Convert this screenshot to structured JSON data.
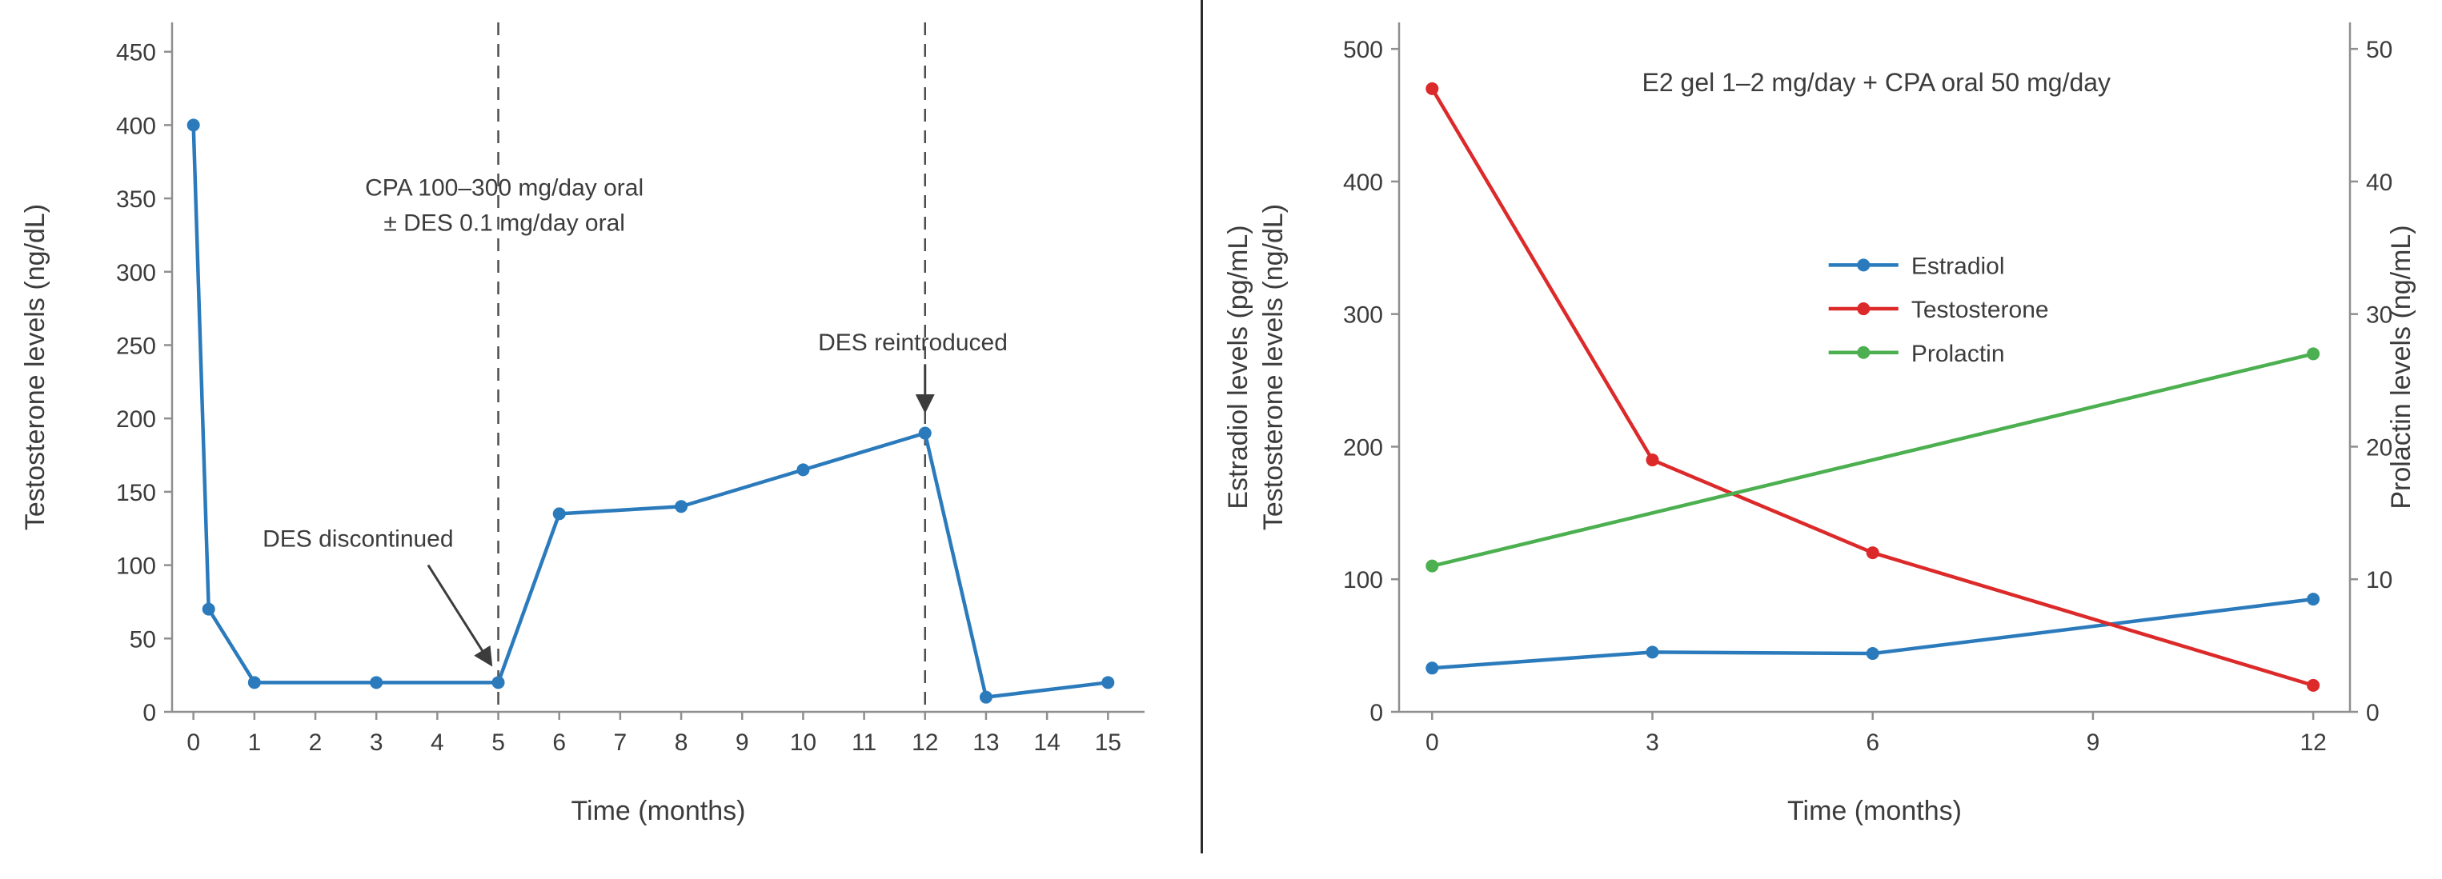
{
  "figure": {
    "background": "#ffffff",
    "divider_color": "#2b2b2b",
    "text_color": "#3c3c3c"
  },
  "chart_data": [
    {
      "type": "line",
      "title": "",
      "xlabel": "Time (months)",
      "ylabel": "Testosterone levels (ng/dL)",
      "xlim": [
        -0.35,
        15.6
      ],
      "ylim": [
        0,
        470
      ],
      "xticks": [
        0,
        1,
        2,
        3,
        4,
        5,
        6,
        7,
        8,
        9,
        10,
        11,
        12,
        13,
        14,
        15
      ],
      "yticks": [
        0,
        50,
        100,
        150,
        200,
        250,
        300,
        350,
        400,
        450
      ],
      "grid": false,
      "legend_position": "none",
      "series": [
        {
          "name": "Testosterone",
          "color": "#2b7bbc",
          "y_axis": "left",
          "marker": "circle",
          "x": [
            0,
            0.25,
            1,
            3,
            5,
            6,
            8,
            10,
            12,
            13,
            15
          ],
          "y": [
            400,
            70,
            20,
            20,
            20,
            135,
            140,
            165,
            190,
            10,
            20
          ]
        }
      ],
      "vlines": [
        {
          "x": 5,
          "style": "dashed"
        },
        {
          "x": 12,
          "style": "dashed"
        }
      ],
      "text_annotations": [
        {
          "role": "treatment-label",
          "lines": [
            "CPA 100–300 mg/day oral",
            "± DES 0.1 mg/day oral"
          ],
          "x": 5.1,
          "y": 352
        }
      ],
      "arrow_annotations": [
        {
          "text": "DES discontinued",
          "text_x": 2.7,
          "text_y": 118,
          "arrow": {
            "x1": 3.85,
            "y1": 100,
            "x2": 4.87,
            "y2": 33
          }
        },
        {
          "text": "DES reintroduced",
          "text_x": 11.8,
          "text_y": 252,
          "arrow": {
            "x1": 12,
            "y1": 237,
            "x2": 12,
            "y2": 206
          }
        }
      ]
    },
    {
      "type": "line",
      "title": "E2 gel 1–2 mg/day + CPA oral 50 mg/day",
      "xlabel": "Time (months)",
      "ylabel": [
        "Estradiol levels (pg/mL)",
        "Testosterone levels (ng/dL)"
      ],
      "y2label": "Prolactin levels (ng/mL)",
      "xlim": [
        -0.45,
        12.5
      ],
      "ylim": [
        0,
        520
      ],
      "y2lim": [
        0,
        52
      ],
      "xticks": [
        0,
        3,
        6,
        9,
        12
      ],
      "yticks": [
        0,
        100,
        200,
        300,
        400,
        500
      ],
      "y2ticks": [
        0,
        10,
        20,
        30,
        40,
        50
      ],
      "grid": false,
      "series": [
        {
          "name": "Estradiol",
          "color": "#2b7bbc",
          "y_axis": "left",
          "marker": "circle",
          "x": [
            0,
            3,
            6,
            12
          ],
          "y": [
            33,
            45,
            44,
            85
          ]
        },
        {
          "name": "Testosterone",
          "color": "#dc2a2a",
          "y_axis": "left",
          "marker": "circle",
          "x": [
            0,
            3,
            6,
            12
          ],
          "y": [
            470,
            190,
            120,
            20
          ]
        },
        {
          "name": "Prolactin",
          "color": "#4caf50",
          "y_axis": "right",
          "marker": "circle",
          "x": [
            0,
            12
          ],
          "y": [
            11,
            27
          ]
        }
      ],
      "text_annotations": [
        {
          "role": "title",
          "lines": [
            "E2 gel 1–2 mg/day + CPA oral 50 mg/day"
          ],
          "x": 6.05,
          "y": 468
        }
      ],
      "legend": {
        "x": 5.4,
        "y": 337,
        "dy": 33,
        "sample_len": 0.95,
        "frame": false,
        "position": "center",
        "entries": [
          "Estradiol",
          "Testosterone",
          "Prolactin"
        ]
      }
    }
  ]
}
